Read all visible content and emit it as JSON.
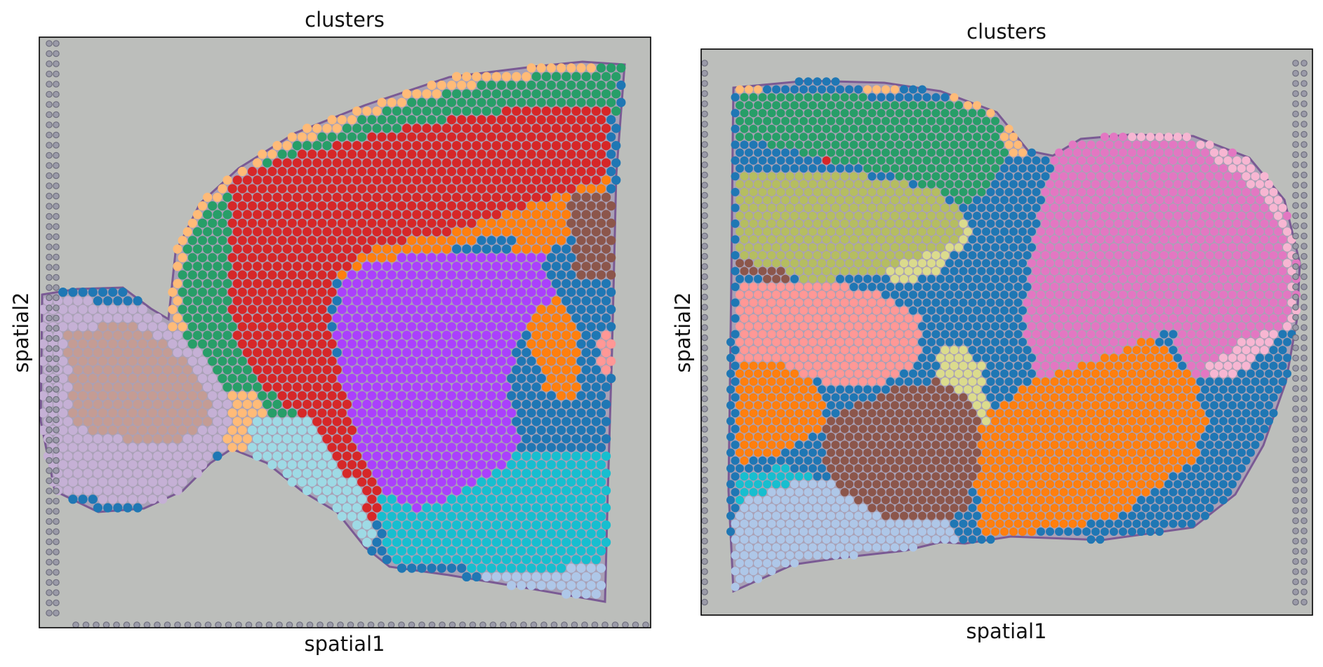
{
  "figure": {
    "panels": [
      {
        "title": "clusters",
        "xlabel": "spatial1",
        "ylabel": "spatial2"
      },
      {
        "title": "clusters",
        "xlabel": "spatial1",
        "ylabel": "spatial2"
      }
    ]
  },
  "chart_data": [
    {
      "type": "scatter",
      "title": "clusters",
      "xlabel": "spatial1",
      "ylabel": "spatial2",
      "ticks": "none",
      "grid": false,
      "legend": "none",
      "background": "H&E tissue image (sagittal brain section, anterior)",
      "series": [
        {
          "color": "#279e68"
        },
        {
          "color": "#d62728"
        },
        {
          "color": "#ffbb78"
        },
        {
          "color": "#aa40fc"
        },
        {
          "color": "#ff7f0e"
        },
        {
          "color": "#1f77b4"
        },
        {
          "color": "#8c564b"
        },
        {
          "color": "#17becf"
        },
        {
          "color": "#aec7e8"
        },
        {
          "color": "#c5b0d5"
        },
        {
          "color": "#c49c94"
        },
        {
          "color": "#9edae5"
        },
        {
          "color": "#dbdb8d"
        },
        {
          "color": "#ff9896"
        }
      ]
    },
    {
      "type": "scatter",
      "title": "clusters",
      "xlabel": "spatial1",
      "ylabel": "spatial2",
      "ticks": "none",
      "grid": false,
      "legend": "none",
      "background": "H&E tissue image (sagittal brain section, posterior)",
      "series": [
        {
          "color": "#279e68"
        },
        {
          "color": "#d62728"
        },
        {
          "color": "#ffbb78"
        },
        {
          "color": "#ff7f0e"
        },
        {
          "color": "#1f77b4"
        },
        {
          "color": "#8c564b"
        },
        {
          "color": "#17becf"
        },
        {
          "color": "#aec7e8"
        },
        {
          "color": "#b5bd61"
        },
        {
          "color": "#dbdb8d"
        },
        {
          "color": "#ff9896"
        },
        {
          "color": "#e377c2"
        },
        {
          "color": "#98df8a"
        },
        {
          "color": "#f7b6d2"
        }
      ]
    }
  ]
}
